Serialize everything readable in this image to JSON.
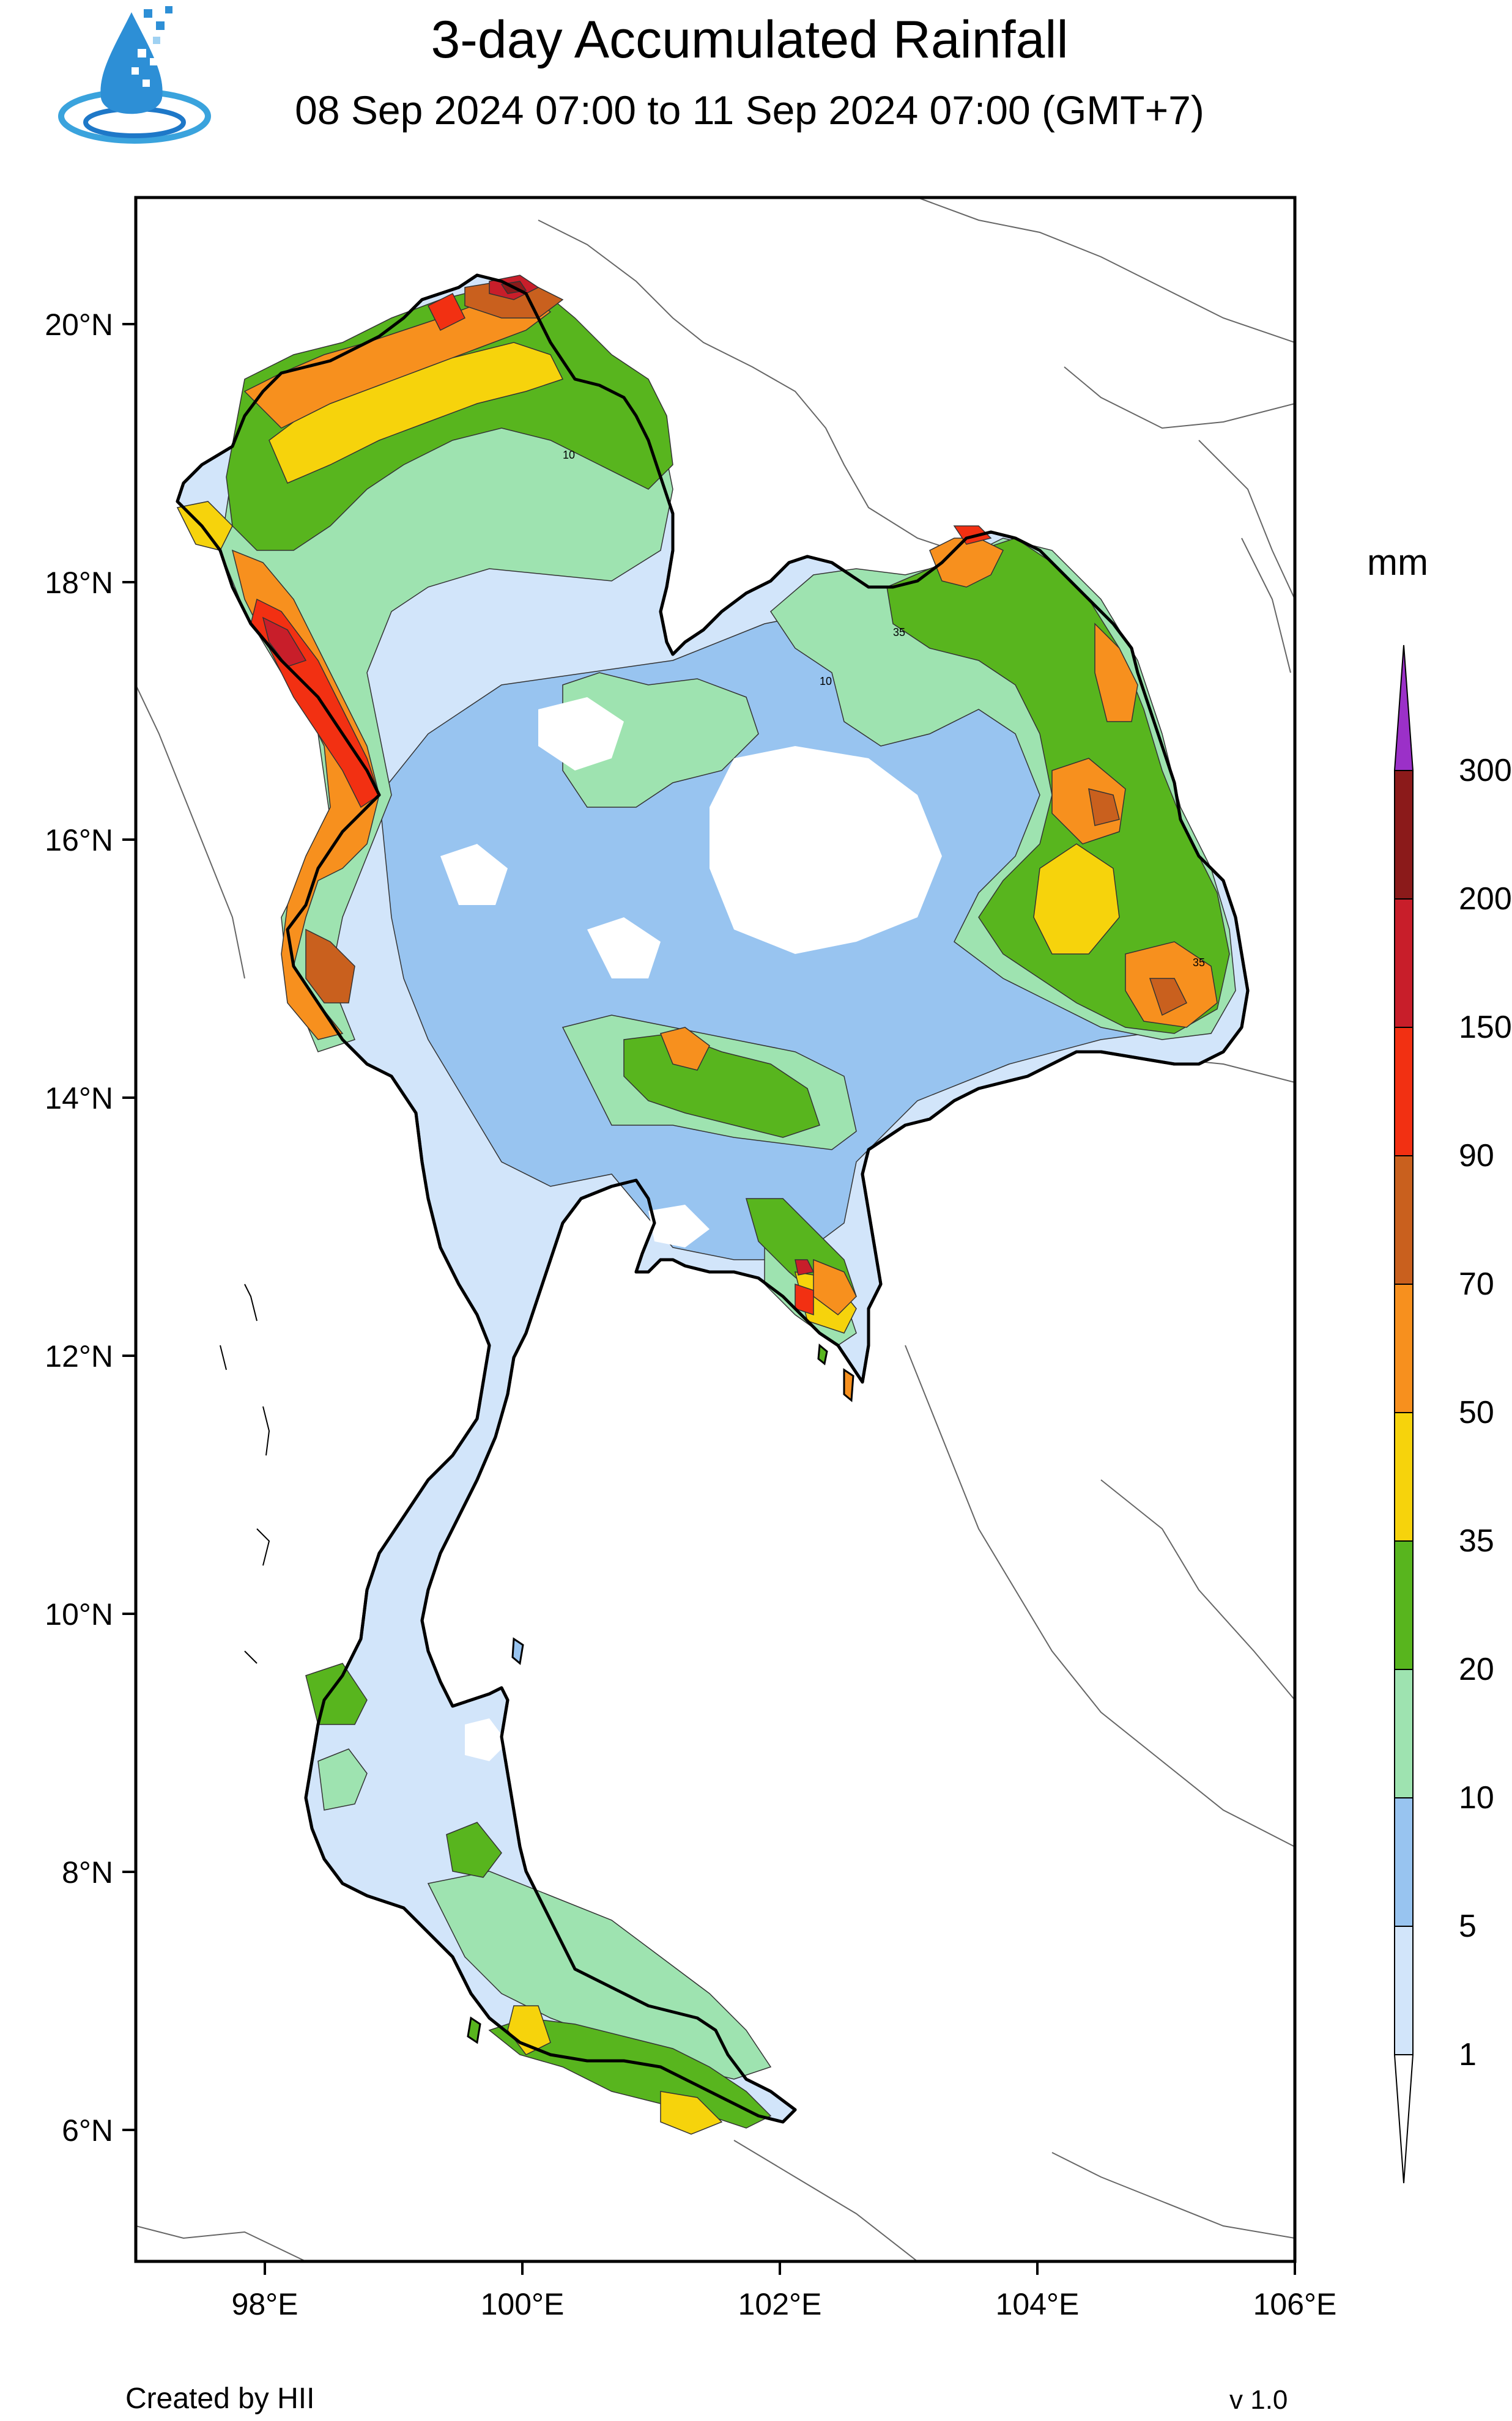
{
  "header": {
    "title": "3-day Accumulated Rainfall",
    "subtitle": "08 Sep 2024 07:00 to 11 Sep 2024 07:00 (GMT+7)"
  },
  "map": {
    "lat_labels": [
      "20°N",
      "18°N",
      "16°N",
      "14°N",
      "12°N",
      "10°N",
      "8°N",
      "6°N"
    ],
    "lon_labels": [
      "98°E",
      "100°E",
      "102°E",
      "104°E",
      "106°E"
    ],
    "contour_labels": [
      "10",
      "35",
      "10",
      "35"
    ]
  },
  "legend": {
    "unit": "mm",
    "levels": [
      "300",
      "200",
      "150",
      "90",
      "70",
      "50",
      "35",
      "20",
      "10",
      "5",
      "1"
    ],
    "colors": {
      "above_300": "#9b30c8",
      "200_300": "#8b1a1a",
      "150_200": "#c81e2a",
      "90_150": "#f23012",
      "70_90": "#c9601e",
      "50_70": "#f7901e",
      "35_50": "#f6d30c",
      "20_35": "#58b51e",
      "10_20": "#9ee3b0",
      "5_10": "#98c4f0",
      "1_5": "#d2e5fa",
      "below_1": "#ffffff"
    }
  },
  "footer": {
    "credit": "Created by HII",
    "version": "v 1.0"
  }
}
